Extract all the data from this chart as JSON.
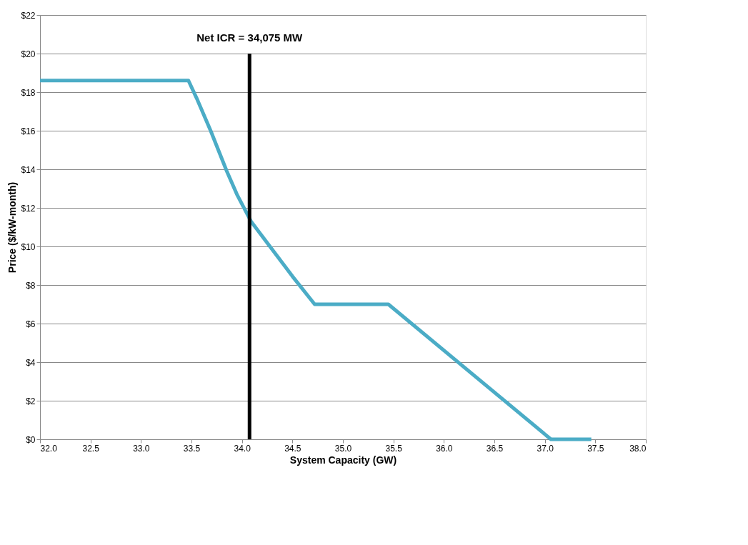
{
  "chart_data": {
    "type": "line",
    "xlabel": "System Capacity (GW)",
    "ylabel": "Price ($/kW-month)",
    "xlim": [
      32.0,
      38.0
    ],
    "xticks": [
      {
        "value": 32,
        "label": "32.0"
      },
      {
        "value": 32.5,
        "label": "32.5"
      },
      {
        "value": 33,
        "label": "33.0"
      },
      {
        "value": 33.5,
        "label": "33.5"
      },
      {
        "value": 34,
        "label": "34.0"
      },
      {
        "value": 34.5,
        "label": "34.5"
      },
      {
        "value": 35,
        "label": "35.0"
      },
      {
        "value": 35.5,
        "label": "35.5"
      },
      {
        "value": 36,
        "label": "36.0"
      },
      {
        "value": 36.5,
        "label": "36.5"
      },
      {
        "value": 37,
        "label": "37.0"
      },
      {
        "value": 37.5,
        "label": "37.5"
      },
      {
        "value": 38,
        "label": "38.0"
      }
    ],
    "ylim": [
      0,
      22
    ],
    "yticks": [
      {
        "value": 0,
        "label": "$0"
      },
      {
        "value": 2,
        "label": "$2"
      },
      {
        "value": 4,
        "label": "$4"
      },
      {
        "value": 6,
        "label": "$6"
      },
      {
        "value": 8,
        "label": "$8"
      },
      {
        "value": 10,
        "label": "$10"
      },
      {
        "value": 12,
        "label": "$12"
      },
      {
        "value": 14,
        "label": "$14"
      },
      {
        "value": 16,
        "label": "$16"
      },
      {
        "value": 18,
        "label": "$18"
      },
      {
        "value": 20,
        "label": "$20"
      },
      {
        "value": 22,
        "label": "$22"
      }
    ],
    "grid": "y",
    "line_style": "solid",
    "series": [
      {
        "color": "#4bacc6",
        "x": [
          32.0,
          33.47,
          33.55,
          33.69,
          33.85,
          33.95,
          34.09,
          34.5,
          34.72,
          35.45,
          37.06,
          37.46
        ],
        "values": [
          18.6,
          18.6,
          17.7,
          16.0,
          13.9,
          12.7,
          11.3,
          8.45,
          7.0,
          7.0,
          0,
          0
        ]
      },
      {
        "color": "#000000",
        "x": [
          34.075,
          34.075
        ],
        "values": [
          0,
          20
        ]
      }
    ],
    "annotations": [
      {
        "text": "Net ICR = 34,075 MW",
        "x": 34.075,
        "y": 20
      }
    ]
  }
}
